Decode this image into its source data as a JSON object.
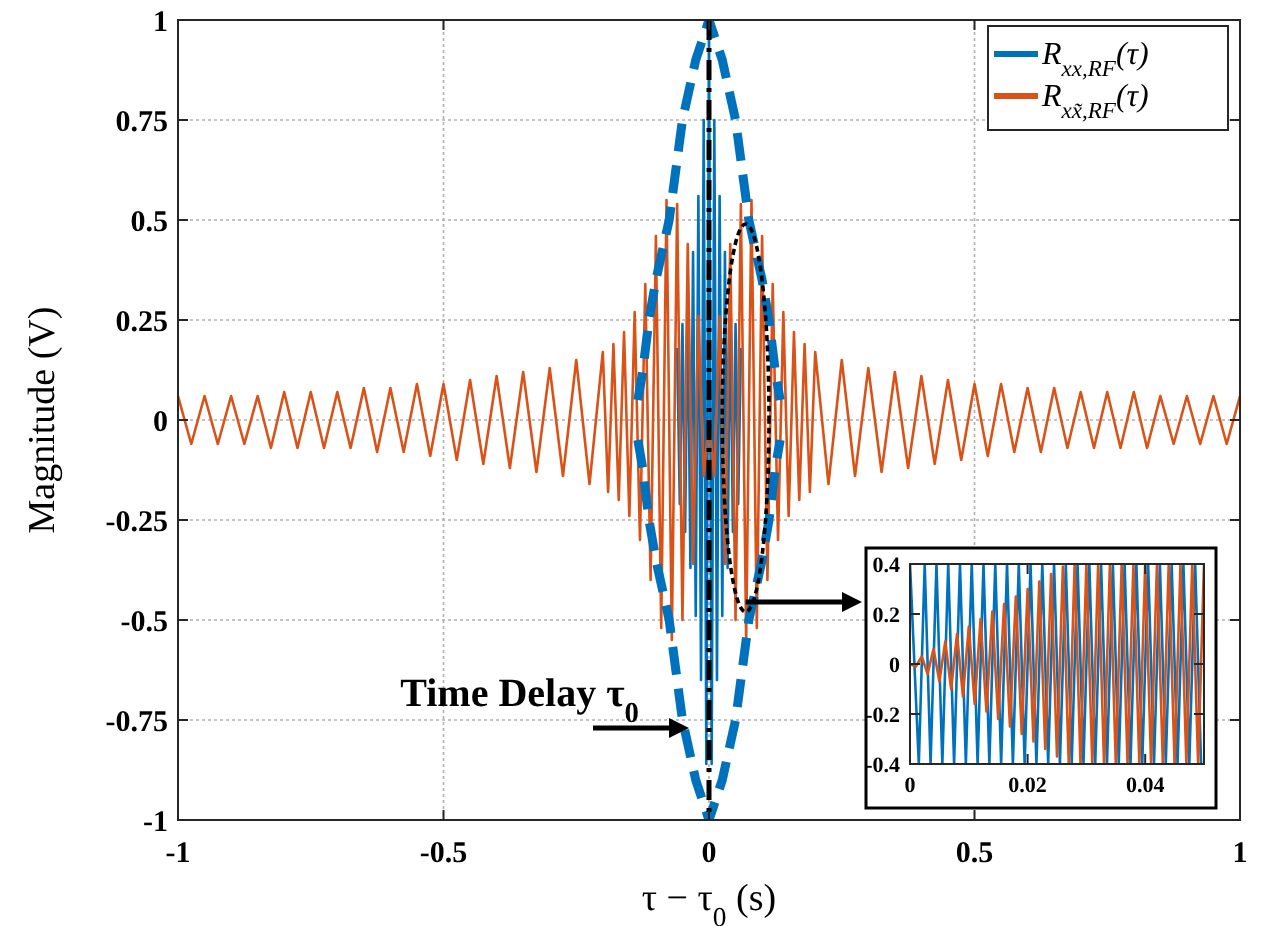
{
  "chart_data": [
    {
      "type": "line",
      "xlabel": "τ − τ$_{0}$ (s)",
      "ylabel": "Magnitude (V)",
      "xlim": [
        -1,
        1
      ],
      "xticks": [
        -1,
        -0.5,
        0,
        0.5,
        1
      ],
      "ylim": [
        -1,
        1
      ],
      "yticks": [
        -1,
        -0.75,
        -0.5,
        -0.25,
        0,
        0.25,
        0.5,
        0.75,
        1
      ],
      "grid": true,
      "legend": "top right",
      "series": [
        {
          "name": "R$_{xx,RF}$(τ)",
          "color": "#0072bd",
          "x": [
            -0.06,
            -0.055,
            -0.05,
            -0.045,
            -0.04,
            -0.035,
            -0.03,
            -0.025,
            -0.02,
            -0.015,
            -0.01,
            -0.005,
            0,
            0.005,
            0.01,
            0.015,
            0.02,
            0.025,
            0.03,
            0.035,
            0.04,
            0.045,
            0.05,
            0.055,
            0.06
          ],
          "values": [
            0.18,
            -0.21,
            0.24,
            -0.28,
            0.32,
            -0.37,
            0.42,
            -0.49,
            0.56,
            -0.65,
            0.75,
            -0.86,
            1,
            -0.86,
            0.75,
            -0.65,
            0.56,
            -0.49,
            0.42,
            -0.37,
            0.32,
            -0.28,
            0.24,
            -0.21,
            0.18
          ]
        },
        {
          "name": "R$_{xx̃,RF}$(τ)",
          "color": "#d95319",
          "x": [
            -1,
            -0.975,
            -0.95,
            -0.925,
            -0.9,
            -0.875,
            -0.85,
            -0.825,
            -0.8,
            -0.775,
            -0.75,
            -0.725,
            -0.7,
            -0.675,
            -0.65,
            -0.625,
            -0.6,
            -0.575,
            -0.55,
            -0.525,
            -0.5,
            -0.475,
            -0.45,
            -0.425,
            -0.4,
            -0.375,
            -0.35,
            -0.325,
            -0.3,
            -0.275,
            -0.25,
            -0.225,
            -0.2,
            -0.19,
            -0.18,
            -0.17,
            -0.16,
            -0.15,
            -0.14,
            -0.13,
            -0.12,
            -0.11,
            -0.1,
            -0.09,
            -0.08,
            -0.07,
            -0.06,
            -0.05,
            -0.04,
            -0.03,
            -0.02,
            -0.01,
            0,
            0.01,
            0.02,
            0.03,
            0.04,
            0.05,
            0.06,
            0.07,
            0.08,
            0.09,
            0.1,
            0.11,
            0.12,
            0.13,
            0.14,
            0.15,
            0.16,
            0.17,
            0.18,
            0.19,
            0.2,
            0.225,
            0.25,
            0.275,
            0.3,
            0.325,
            0.35,
            0.375,
            0.4,
            0.425,
            0.45,
            0.475,
            0.5,
            0.525,
            0.55,
            0.575,
            0.6,
            0.625,
            0.65,
            0.675,
            0.7,
            0.725,
            0.75,
            0.775,
            0.8,
            0.825,
            0.85,
            0.875,
            0.9,
            0.925,
            0.95,
            0.975,
            1
          ],
          "values": [
            0.06,
            -0.06,
            0.06,
            -0.06,
            0.06,
            -0.06,
            0.06,
            -0.07,
            0.07,
            -0.07,
            0.07,
            -0.07,
            0.07,
            -0.07,
            0.08,
            -0.08,
            0.08,
            -0.08,
            0.09,
            -0.09,
            0.09,
            -0.1,
            0.1,
            -0.11,
            0.11,
            -0.12,
            0.12,
            -0.13,
            0.13,
            -0.14,
            0.15,
            -0.16,
            0.17,
            -0.18,
            0.19,
            -0.2,
            0.22,
            -0.24,
            0.27,
            -0.3,
            0.34,
            -0.4,
            0.46,
            -0.52,
            0.55,
            -0.55,
            0.54,
            -0.5,
            0.44,
            -0.36,
            0.26,
            -0.14,
            0,
            -0.14,
            0.26,
            -0.36,
            0.44,
            -0.5,
            0.54,
            -0.55,
            0.55,
            -0.52,
            0.46,
            -0.4,
            0.34,
            -0.3,
            0.27,
            -0.24,
            0.22,
            -0.2,
            0.19,
            -0.18,
            0.17,
            -0.16,
            0.15,
            -0.14,
            0.13,
            -0.13,
            0.12,
            -0.12,
            0.11,
            -0.11,
            0.1,
            -0.1,
            0.09,
            -0.09,
            0.09,
            -0.08,
            0.08,
            -0.08,
            0.08,
            -0.07,
            0.07,
            -0.07,
            0.07,
            -0.07,
            0.07,
            -0.07,
            0.06,
            -0.06,
            0.06,
            -0.06,
            0.06,
            -0.06,
            0.06
          ]
        },
        {
          "color": "#0072bd",
          "line_style": "dashed",
          "x": [
            -0.134,
            -0.125,
            -0.113,
            -0.1,
            -0.075,
            -0.05,
            -0.025,
            0,
            0.025,
            0.05,
            0.075,
            0.1,
            0.113,
            0.125,
            0.134
          ],
          "values": [
            0.05,
            0.12,
            0.25,
            0.35,
            0.5,
            0.75,
            0.9,
            1,
            0.9,
            0.75,
            0.5,
            0.35,
            0.25,
            0.12,
            0.05
          ]
        },
        {
          "color": "#0072bd",
          "line_style": "dashed",
          "x": [
            -0.134,
            -0.125,
            -0.113,
            -0.1,
            -0.075,
            -0.05,
            -0.025,
            0,
            0.025,
            0.05,
            0.075,
            0.1,
            0.113,
            0.125,
            0.134
          ],
          "values": [
            -0.05,
            -0.12,
            -0.25,
            -0.35,
            -0.5,
            -0.75,
            -0.9,
            -1,
            -0.9,
            -0.75,
            -0.5,
            -0.35,
            -0.25,
            -0.12,
            -0.05
          ]
        }
      ],
      "ref_lines": [
        {
          "axis": "x",
          "value": 0,
          "color": "#000000",
          "line_style": "dashed"
        }
      ],
      "annotations": [
        {
          "text": "Time Delay τ$_{0}$",
          "x": 0,
          "y": -0.77
        }
      ]
    },
    {
      "type": "line",
      "xlim": [
        0,
        0.05
      ],
      "xticks": [
        0,
        0.02,
        0.04
      ],
      "ylim": [
        -0.4,
        0.4
      ],
      "yticks": [
        -0.4,
        -0.2,
        0,
        0.2,
        0.4
      ],
      "series": [
        {
          "color": "#0072bd",
          "x": [
            0,
            0.0015,
            0.0025,
            0.0035,
            0.0045,
            0.0055,
            0.0065,
            0.0075,
            0.0085,
            0.0095,
            0.0105,
            0.0115,
            0.0125,
            0.0135,
            0.0145,
            0.0155,
            0.0165,
            0.0175,
            0.0185,
            0.0195,
            0.0205,
            0.0215,
            0.0225,
            0.0235,
            0.0245,
            0.0255,
            0.0265,
            0.0275,
            0.0285,
            0.0295,
            0.0305,
            0.0315,
            0.0325,
            0.0335,
            0.0345,
            0.0355,
            0.0365,
            0.0375,
            0.0385,
            0.0395,
            0.0405,
            0.0415,
            0.0425,
            0.0435,
            0.0445,
            0.0455,
            0.0465,
            0.0475,
            0.0485,
            0.0495
          ],
          "values": [
            0.4,
            -0.4,
            0.4,
            -0.4,
            0.4,
            -0.4,
            0.4,
            -0.4,
            0.4,
            -0.4,
            0.4,
            -0.4,
            0.4,
            -0.4,
            0.4,
            -0.4,
            0.4,
            -0.4,
            0.4,
            -0.4,
            0.4,
            -0.4,
            0.4,
            -0.4,
            0.4,
            -0.4,
            0.4,
            -0.4,
            0.4,
            -0.4,
            0.4,
            -0.4,
            0.4,
            -0.4,
            0.4,
            -0.4,
            0.4,
            -0.4,
            0.4,
            -0.4,
            0.4,
            -0.4,
            0.4,
            -0.4,
            0.4,
            -0.4,
            0.4,
            -0.4,
            0.4,
            -0.4
          ]
        },
        {
          "color": "#d95319",
          "x": [
            0,
            0.001,
            0.002,
            0.003,
            0.004,
            0.005,
            0.006,
            0.007,
            0.008,
            0.009,
            0.01,
            0.011,
            0.012,
            0.013,
            0.014,
            0.015,
            0.016,
            0.017,
            0.018,
            0.019,
            0.02,
            0.021,
            0.022,
            0.023,
            0.024,
            0.025,
            0.026,
            0.027,
            0.028,
            0.029,
            0.03,
            0.031,
            0.032,
            0.033,
            0.034,
            0.035,
            0.036,
            0.037,
            0.038,
            0.039,
            0.04,
            0.041,
            0.042,
            0.043,
            0.044,
            0.045,
            0.046,
            0.047,
            0.048,
            0.049,
            0.05
          ],
          "values": [
            0,
            -0.01,
            0.03,
            -0.04,
            0.06,
            -0.07,
            0.09,
            -0.1,
            0.12,
            -0.13,
            0.15,
            -0.16,
            0.18,
            -0.19,
            0.21,
            -0.22,
            0.24,
            -0.25,
            0.27,
            -0.28,
            0.3,
            -0.31,
            0.33,
            -0.34,
            0.36,
            -0.37,
            0.39,
            -0.4,
            0.4,
            -0.4,
            0.4,
            -0.4,
            0.4,
            -0.4,
            0.4,
            -0.4,
            0.4,
            -0.4,
            0.4,
            -0.4,
            0.4,
            -0.4,
            0.4,
            -0.4,
            0.4,
            -0.4,
            0.4,
            -0.4,
            0.4,
            -0.4,
            0.4
          ]
        }
      ]
    }
  ]
}
